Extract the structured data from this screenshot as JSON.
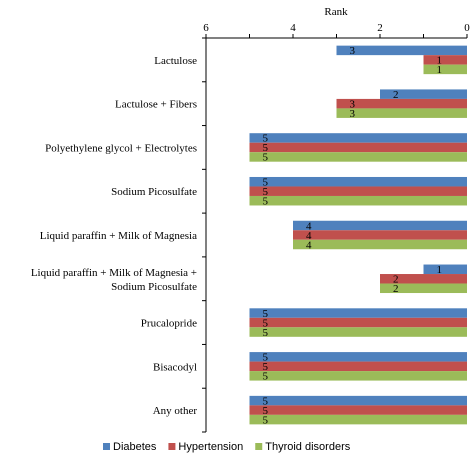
{
  "chart_data": {
    "type": "bar",
    "orientation": "horizontal",
    "xlabel": "Rank",
    "x_axis_position": "top",
    "x_reversed": true,
    "xlim": [
      0,
      6
    ],
    "x_ticks": [
      6,
      4,
      2,
      0
    ],
    "grid": false,
    "legend_position": "bottom",
    "categories": [
      [
        "Lactulose"
      ],
      [
        "Lactulose + Fibers"
      ],
      [
        "Polyethylene glycol + Electrolytes"
      ],
      [
        "Sodium Picosulfate"
      ],
      [
        "Liquid paraffin + Milk of Magnesia"
      ],
      [
        "Liquid paraffin + Milk of Magnesia +",
        "Sodium Picosulfate"
      ],
      [
        "Prucalopride"
      ],
      [
        "Bisacodyl"
      ],
      [
        "Any other"
      ]
    ],
    "series": [
      {
        "name": "Diabetes",
        "color": "#4f81bd",
        "values": [
          3,
          2,
          5,
          5,
          4,
          1,
          5,
          5,
          5
        ]
      },
      {
        "name": "Hypertension",
        "color": "#c0504d",
        "values": [
          1,
          3,
          5,
          5,
          4,
          2,
          5,
          5,
          5
        ]
      },
      {
        "name": "Thyroid disorders",
        "color": "#9bbb59",
        "values": [
          1,
          3,
          5,
          5,
          4,
          2,
          5,
          5,
          5
        ]
      }
    ]
  }
}
